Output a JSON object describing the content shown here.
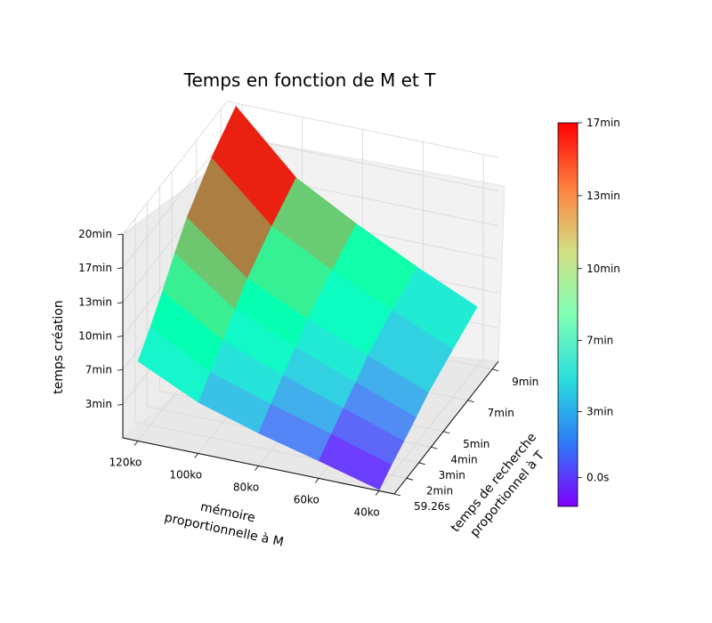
{
  "chart_data": {
    "type": "surface3d",
    "title": "Temps en fonction de M et T",
    "xlabel": "mémoire\nproportionnelle à M",
    "ylabel": "temps de recherche\nproportionnel à T",
    "zlabel": "temps création",
    "x_ticks": [
      "120ko",
      "100ko",
      "80ko",
      "60ko",
      "40ko"
    ],
    "y_ticks": [
      "59.26s",
      "2min",
      "3min",
      "4min",
      "5min",
      "7min",
      "9min"
    ],
    "z_ticks": [
      "3min",
      "7min",
      "10min",
      "13min",
      "17min",
      "20min"
    ],
    "colorbar": {
      "colormap": "rainbow",
      "ticks": [
        "0.0s",
        "3min",
        "7min",
        "10min",
        "13min",
        "17min"
      ]
    },
    "grid": true,
    "x_range_ko": [
      35,
      125
    ],
    "y_range_min": [
      0.99,
      9.5
    ],
    "z_range_min": [
      0,
      20
    ],
    "surface_description": "creation time (min) over memory M (ko) and search time T (min)",
    "rows": [
      {
        "x_ko": 120,
        "y_min": [
          1,
          2,
          3,
          4,
          5,
          7,
          9
        ],
        "z_min": [
          7.8,
          9.6,
          11.6,
          13.8,
          15.8,
          18.6,
          20.6
        ]
      },
      {
        "x_ko": 100,
        "y_min": [
          1,
          2,
          3,
          4,
          5,
          7,
          9
        ],
        "z_min": [
          5.0,
          6.4,
          8.0,
          9.5,
          11.0,
          13.1,
          14.8
        ]
      },
      {
        "x_ko": 80,
        "y_min": [
          1,
          2,
          3,
          4,
          5,
          7,
          9
        ],
        "z_min": [
          3.2,
          4.5,
          5.8,
          7.0,
          8.3,
          10.0,
          11.5
        ]
      },
      {
        "x_ko": 60,
        "y_min": [
          1,
          2,
          3,
          4,
          5,
          7,
          9
        ],
        "z_min": [
          1.7,
          2.8,
          3.8,
          4.8,
          5.9,
          7.3,
          8.5
        ]
      },
      {
        "x_ko": 40,
        "y_min": [
          1,
          2,
          3,
          4,
          5,
          7,
          9
        ],
        "z_min": [
          0.1,
          1.0,
          1.8,
          2.6,
          3.5,
          4.7,
          5.8
        ]
      }
    ]
  }
}
